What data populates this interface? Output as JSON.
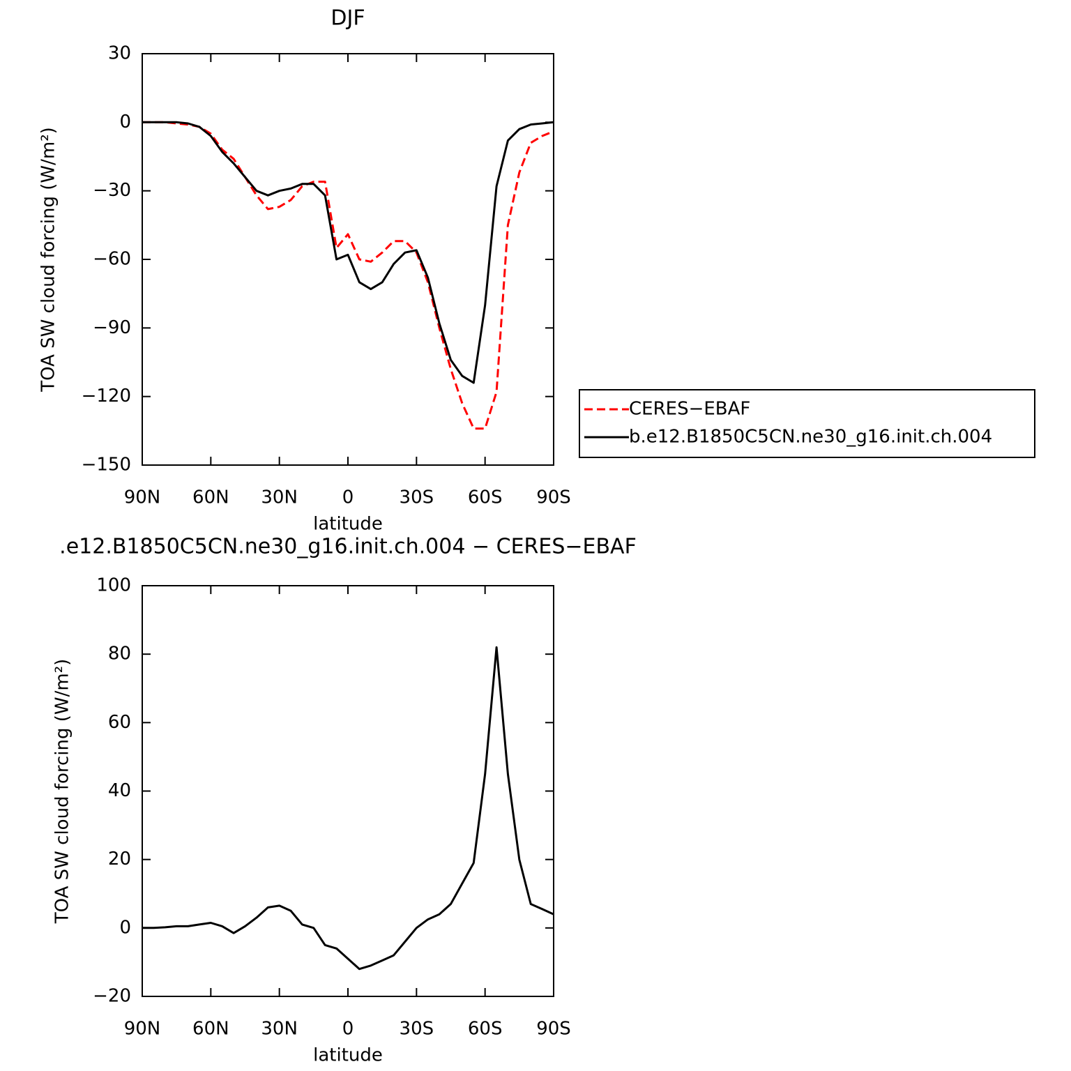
{
  "chart_data": [
    {
      "type": "line",
      "title": "DJF",
      "xlabel": "latitude",
      "ylabel": "TOA SW cloud forcing (W/m²)",
      "x": [
        90,
        85,
        80,
        75,
        70,
        65,
        60,
        55,
        50,
        45,
        40,
        35,
        30,
        25,
        20,
        15,
        10,
        5,
        0,
        -5,
        -10,
        -15,
        -20,
        -25,
        -30,
        -35,
        -40,
        -45,
        -50,
        -55,
        -60,
        -65,
        -70,
        -75,
        -80,
        -85,
        -90
      ],
      "xlim": [
        90,
        -90
      ],
      "xticks": [
        {
          "value": 90,
          "label": "90N"
        },
        {
          "value": 60,
          "label": "60N"
        },
        {
          "value": 30,
          "label": "30N"
        },
        0,
        {
          "value": -30,
          "label": "30S"
        },
        {
          "value": -60,
          "label": "60S"
        },
        {
          "value": -90,
          "label": "90S"
        }
      ],
      "ylim": [
        -150,
        30
      ],
      "yticks": [
        {
          "value": -150,
          "label": "−150"
        },
        {
          "value": -120,
          "label": "−120"
        },
        {
          "value": -90,
          "label": "−90"
        },
        {
          "value": -60,
          "label": "−60"
        },
        {
          "value": -30,
          "label": "−30"
        },
        0,
        30
      ],
      "legend": "right",
      "series": [
        {
          "name": "CERES−EBAF",
          "color": "#ff0000",
          "line_style": "dashed",
          "values": [
            0,
            0,
            0,
            -0.5,
            -1,
            -2,
            -5,
            -12,
            -16,
            -24,
            -32,
            -38,
            -37,
            -34,
            -28,
            -26,
            -26,
            -55,
            -49,
            -60,
            -61,
            -57,
            -52,
            -52,
            -57,
            -70,
            -90,
            -108,
            -123,
            -134,
            -134,
            -118,
            -45,
            -22,
            -9,
            -6,
            -4
          ]
        },
        {
          "name": "b.e12.B1850C5CN.ne30_g16.init.ch.004",
          "color": "#000000",
          "line_style": "solid",
          "values": [
            0,
            0,
            0,
            0,
            -0.5,
            -2,
            -6,
            -13,
            -18,
            -24,
            -30,
            -32,
            -30,
            -29,
            -27,
            -27,
            -32,
            -60,
            -58,
            -70,
            -73,
            -70,
            -62,
            -57,
            -56,
            -68,
            -88,
            -104,
            -111,
            -114,
            -80,
            -28,
            -8,
            -3,
            -1,
            -0.5,
            0
          ]
        }
      ]
    },
    {
      "type": "line",
      "title": ".e12.B1850C5CN.ne30_g16.init.ch.004 − CERES−EBAF",
      "xlabel": "latitude",
      "ylabel": "TOA SW cloud forcing (W/m²)",
      "x": [
        90,
        85,
        80,
        75,
        70,
        65,
        60,
        55,
        50,
        45,
        40,
        35,
        30,
        25,
        20,
        15,
        10,
        5,
        0,
        -5,
        -10,
        -15,
        -20,
        -25,
        -30,
        -35,
        -40,
        -45,
        -50,
        -55,
        -60,
        -65,
        -70,
        -75,
        -80,
        -85,
        -90
      ],
      "xlim": [
        90,
        -90
      ],
      "xticks": [
        {
          "value": 90,
          "label": "90N"
        },
        {
          "value": 60,
          "label": "60N"
        },
        {
          "value": 30,
          "label": "30N"
        },
        0,
        {
          "value": -30,
          "label": "30S"
        },
        {
          "value": -60,
          "label": "60S"
        },
        {
          "value": -90,
          "label": "90S"
        }
      ],
      "ylim": [
        -20,
        100
      ],
      "yticks": [
        {
          "value": -20,
          "label": "−20"
        },
        0,
        20,
        40,
        60,
        80,
        100
      ],
      "series": [
        {
          "color": "#000000",
          "line_style": "solid",
          "values": [
            0,
            0,
            0.2,
            0.5,
            0.5,
            1,
            1.5,
            0.5,
            -1.5,
            0.5,
            3,
            6,
            6.5,
            5,
            1,
            0,
            -5,
            -6,
            -9,
            -12,
            -11,
            -9.5,
            -8,
            -4,
            0,
            2.5,
            4,
            7,
            13,
            19,
            45,
            82,
            45,
            20,
            7,
            5.5,
            4
          ]
        }
      ]
    }
  ]
}
